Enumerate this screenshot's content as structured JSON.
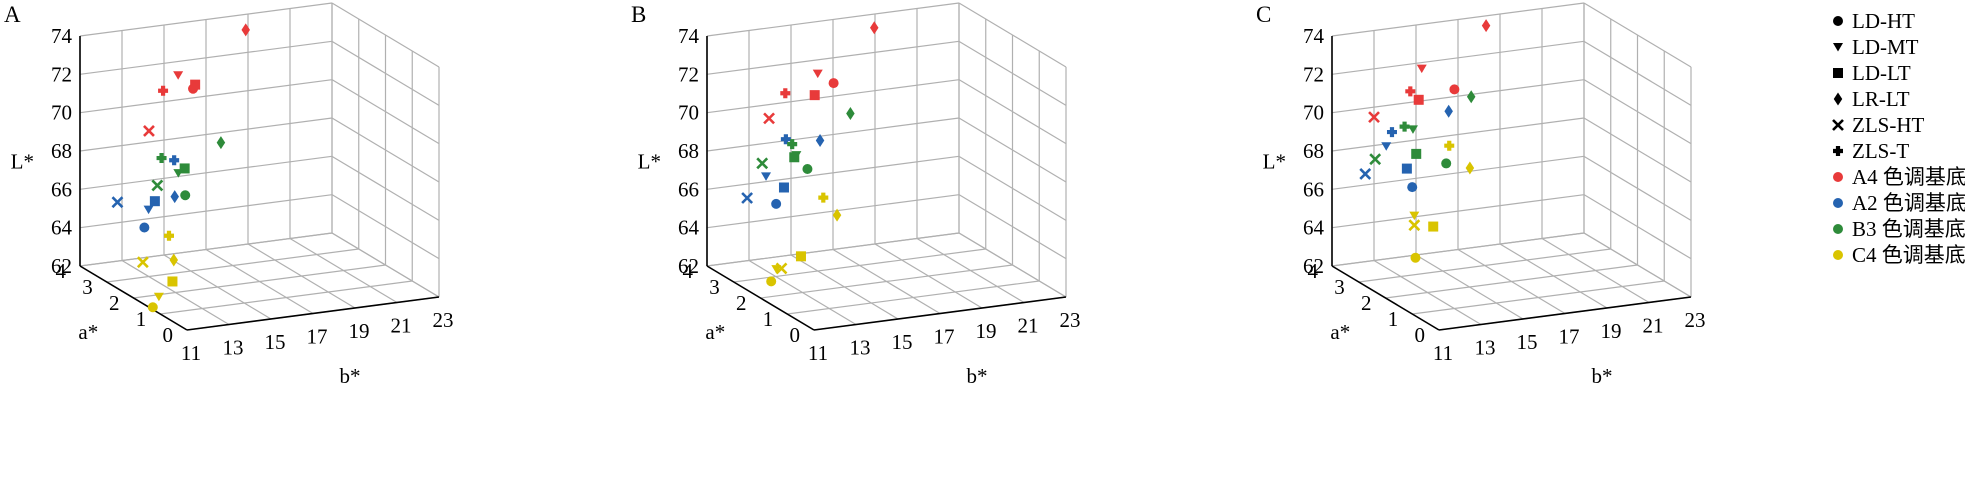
{
  "colors": {
    "A4": "#e83a3a",
    "A2": "#2563b0",
    "B3": "#2e8b3a",
    "C4": "#d9c400",
    "grid": "#b0b0b0",
    "axis": "#000000"
  },
  "legend": {
    "shape_entries": [
      {
        "label": "LD-HT",
        "marker": "circle"
      },
      {
        "label": "LD-MT",
        "marker": "triangle-down"
      },
      {
        "label": "LD-LT",
        "marker": "square"
      },
      {
        "label": "LR-LT",
        "marker": "diamond"
      },
      {
        "label": "ZLS-HT",
        "marker": "x"
      },
      {
        "label": "ZLS-T",
        "marker": "plus"
      }
    ],
    "color_entries": [
      {
        "label": "A4 色调基底",
        "color": "A4"
      },
      {
        "label": "A2 色调基底",
        "color": "A2"
      },
      {
        "label": "B3 色调基底",
        "color": "B3"
      },
      {
        "label": "C4 色调基底",
        "color": "C4"
      }
    ]
  },
  "chart_data": [
    {
      "panel": "A",
      "type": "scatter3d",
      "zlabel": "L*",
      "xlabel": "b*",
      "ylabel": "a*",
      "zlim": [
        62,
        74
      ],
      "xlim": [
        11,
        23
      ],
      "ylim": [
        0,
        4
      ],
      "z_ticks": [
        "62",
        "64",
        "66",
        "68",
        "70",
        "72",
        "74"
      ],
      "x_ticks": [
        "11",
        "13",
        "15",
        "17",
        "19",
        "21",
        "23"
      ],
      "y_ticks": [
        "0",
        "1",
        "2",
        "3",
        "4"
      ],
      "grid": true,
      "points": [
        {
          "group": "A4",
          "marker": "circle",
          "b": 14.6,
          "a": 2.6,
          "L": 71.9
        },
        {
          "group": "A4",
          "marker": "triangle-down",
          "b": 14.4,
          "a": 3.0,
          "L": 72.3
        },
        {
          "group": "A4",
          "marker": "square",
          "b": 14.7,
          "a": 2.6,
          "L": 72.1
        },
        {
          "group": "A4",
          "marker": "diamond",
          "b": 18.0,
          "a": 3.3,
          "L": 73.9
        },
        {
          "group": "A4",
          "marker": "x",
          "b": 12.5,
          "a": 2.6,
          "L": 70.0
        },
        {
          "group": "A4",
          "marker": "plus",
          "b": 13.3,
          "a": 2.7,
          "L": 71.9
        },
        {
          "group": "A2",
          "marker": "circle",
          "b": 11.9,
          "a": 2.3,
          "L": 65.3
        },
        {
          "group": "A2",
          "marker": "triangle-down",
          "b": 12.1,
          "a": 2.3,
          "L": 66.2
        },
        {
          "group": "A2",
          "marker": "square",
          "b": 12.4,
          "a": 2.3,
          "L": 66.6
        },
        {
          "group": "A2",
          "marker": "diamond",
          "b": 13.6,
          "a": 2.5,
          "L": 66.5
        },
        {
          "group": "A2",
          "marker": "x",
          "b": 11.0,
          "a": 2.6,
          "L": 66.5
        },
        {
          "group": "A2",
          "marker": "plus",
          "b": 13.7,
          "a": 2.6,
          "L": 68.3
        },
        {
          "group": "B3",
          "marker": "circle",
          "b": 14.1,
          "a": 2.5,
          "L": 66.5
        },
        {
          "group": "B3",
          "marker": "triangle-down",
          "b": 13.9,
          "a": 2.6,
          "L": 67.6
        },
        {
          "group": "B3",
          "marker": "square",
          "b": 14.2,
          "a": 2.6,
          "L": 67.8
        },
        {
          "group": "B3",
          "marker": "diamond",
          "b": 15.8,
          "a": 2.5,
          "L": 69.0
        },
        {
          "group": "B3",
          "marker": "x",
          "b": 12.9,
          "a": 2.6,
          "L": 67.1
        },
        {
          "group": "B3",
          "marker": "plus",
          "b": 13.1,
          "a": 2.6,
          "L": 68.5
        },
        {
          "group": "C4",
          "marker": "circle",
          "b": 10.9,
          "a": 1.2,
          "L": 62.2
        },
        {
          "group": "C4",
          "marker": "triangle-down",
          "b": 11.7,
          "a": 1.6,
          "L": 62.3
        },
        {
          "group": "C4",
          "marker": "square",
          "b": 12.6,
          "a": 1.8,
          "L": 62.8
        },
        {
          "group": "C4",
          "marker": "diamond",
          "b": 13.3,
          "a": 2.3,
          "L": 63.4
        },
        {
          "group": "C4",
          "marker": "x",
          "b": 11.7,
          "a": 2.2,
          "L": 63.6
        },
        {
          "group": "C4",
          "marker": "plus",
          "b": 13.2,
          "a": 2.4,
          "L": 64.6
        }
      ]
    },
    {
      "panel": "B",
      "type": "scatter3d",
      "zlabel": "L*",
      "xlabel": "b*",
      "ylabel": "a*",
      "zlim": [
        62,
        74
      ],
      "xlim": [
        11,
        23
      ],
      "ylim": [
        0,
        4
      ],
      "z_ticks": [
        "62",
        "64",
        "66",
        "68",
        "70",
        "72",
        "74"
      ],
      "x_ticks": [
        "11",
        "13",
        "15",
        "17",
        "19",
        "21",
        "23"
      ],
      "y_ticks": [
        "0",
        "1",
        "2",
        "3",
        "4"
      ],
      "grid": true,
      "points": [
        {
          "group": "A4",
          "marker": "circle",
          "b": 15.5,
          "a": 2.8,
          "L": 71.9
        },
        {
          "group": "A4",
          "marker": "triangle-down",
          "b": 15.0,
          "a": 3.0,
          "L": 72.3
        },
        {
          "group": "A4",
          "marker": "square",
          "b": 14.6,
          "a": 2.8,
          "L": 71.4
        },
        {
          "group": "A4",
          "marker": "diamond",
          "b": 18.2,
          "a": 3.4,
          "L": 73.9
        },
        {
          "group": "A4",
          "marker": "x",
          "b": 12.3,
          "a": 2.7,
          "L": 70.6
        },
        {
          "group": "A4",
          "marker": "plus",
          "b": 13.2,
          "a": 2.8,
          "L": 71.7
        },
        {
          "group": "A2",
          "marker": "circle",
          "b": 12.0,
          "a": 2.2,
          "L": 66.6
        },
        {
          "group": "A2",
          "marker": "triangle-down",
          "b": 11.9,
          "a": 2.5,
          "L": 67.8
        },
        {
          "group": "A2",
          "marker": "square",
          "b": 12.5,
          "a": 2.3,
          "L": 67.3
        },
        {
          "group": "A2",
          "marker": "diamond",
          "b": 14.6,
          "a": 2.6,
          "L": 69.2
        },
        {
          "group": "A2",
          "marker": "x",
          "b": 11.0,
          "a": 2.5,
          "L": 66.8
        },
        {
          "group": "A2",
          "marker": "plus",
          "b": 13.1,
          "a": 2.7,
          "L": 69.4
        },
        {
          "group": "B3",
          "marker": "circle",
          "b": 14.0,
          "a": 2.6,
          "L": 67.8
        },
        {
          "group": "B3",
          "marker": "triangle-down",
          "b": 13.6,
          "a": 2.7,
          "L": 68.5
        },
        {
          "group": "B3",
          "marker": "square",
          "b": 13.5,
          "a": 2.7,
          "L": 68.4
        },
        {
          "group": "B3",
          "marker": "diamond",
          "b": 16.3,
          "a": 2.8,
          "L": 70.2
        },
        {
          "group": "B3",
          "marker": "x",
          "b": 12.1,
          "a": 2.8,
          "L": 68.2
        },
        {
          "group": "B3",
          "marker": "plus",
          "b": 13.4,
          "a": 2.7,
          "L": 69.1
        },
        {
          "group": "C4",
          "marker": "circle",
          "b": 11.0,
          "a": 1.6,
          "L": 63.2
        },
        {
          "group": "C4",
          "marker": "triangle-down",
          "b": 11.5,
          "a": 1.8,
          "L": 63.6
        },
        {
          "group": "C4",
          "marker": "square",
          "b": 12.8,
          "a": 1.9,
          "L": 64.0
        },
        {
          "group": "C4",
          "marker": "diamond",
          "b": 14.9,
          "a": 2.2,
          "L": 65.6
        },
        {
          "group": "C4",
          "marker": "x",
          "b": 12.0,
          "a": 2.0,
          "L": 63.4
        },
        {
          "group": "C4",
          "marker": "plus",
          "b": 14.5,
          "a": 2.4,
          "L": 66.4
        }
      ]
    },
    {
      "panel": "C",
      "type": "scatter3d",
      "zlabel": "L*",
      "xlabel": "b*",
      "ylabel": "a*",
      "zlim": [
        62,
        74
      ],
      "xlim": [
        11,
        23
      ],
      "ylim": [
        0,
        4
      ],
      "z_ticks": [
        "62",
        "64",
        "66",
        "68",
        "70",
        "72",
        "74"
      ],
      "x_ticks": [
        "11",
        "13",
        "15",
        "17",
        "19",
        "21",
        "23"
      ],
      "y_ticks": [
        "0",
        "1",
        "2",
        "3",
        "4"
      ],
      "grid": true,
      "points": [
        {
          "group": "A4",
          "marker": "circle",
          "b": 15.3,
          "a": 2.8,
          "L": 71.6
        },
        {
          "group": "A4",
          "marker": "triangle-down",
          "b": 14.0,
          "a": 3.0,
          "L": 72.7
        },
        {
          "group": "A4",
          "marker": "square",
          "b": 13.6,
          "a": 2.8,
          "L": 71.3
        },
        {
          "group": "A4",
          "marker": "diamond",
          "b": 17.7,
          "a": 3.5,
          "L": 74.0
        },
        {
          "group": "A4",
          "marker": "x",
          "b": 11.6,
          "a": 2.9,
          "L": 70.6
        },
        {
          "group": "A4",
          "marker": "plus",
          "b": 13.2,
          "a": 2.8,
          "L": 71.8
        },
        {
          "group": "A2",
          "marker": "circle",
          "b": 12.4,
          "a": 2.1,
          "L": 67.5
        },
        {
          "group": "A2",
          "marker": "triangle-down",
          "b": 11.8,
          "a": 2.6,
          "L": 69.3
        },
        {
          "group": "A2",
          "marker": "square",
          "b": 12.4,
          "a": 2.3,
          "L": 68.3
        },
        {
          "group": "A2",
          "marker": "diamond",
          "b": 14.9,
          "a": 2.7,
          "L": 70.6
        },
        {
          "group": "A2",
          "marker": "x",
          "b": 10.8,
          "a": 2.6,
          "L": 68.0
        },
        {
          "group": "A2",
          "marker": "plus",
          "b": 12.2,
          "a": 2.7,
          "L": 69.9
        },
        {
          "group": "B3",
          "marker": "circle",
          "b": 14.4,
          "a": 2.4,
          "L": 68.2
        },
        {
          "group": "B3",
          "marker": "triangle-down",
          "b": 13.2,
          "a": 2.7,
          "L": 69.9
        },
        {
          "group": "B3",
          "marker": "square",
          "b": 13.1,
          "a": 2.5,
          "L": 68.8
        },
        {
          "group": "B3",
          "marker": "diamond",
          "b": 16.1,
          "a": 2.8,
          "L": 71.1
        },
        {
          "group": "B3",
          "marker": "x",
          "b": 11.4,
          "a": 2.7,
          "L": 68.6
        },
        {
          "group": "B3",
          "marker": "plus",
          "b": 12.8,
          "a": 2.7,
          "L": 70.1
        },
        {
          "group": "C4",
          "marker": "circle",
          "b": 12.3,
          "a": 1.9,
          "L": 64.0
        },
        {
          "group": "C4",
          "marker": "triangle-down",
          "b": 12.5,
          "a": 2.1,
          "L": 66.0
        },
        {
          "group": "C4",
          "marker": "square",
          "b": 13.4,
          "a": 2.1,
          "L": 65.3
        },
        {
          "group": "C4",
          "marker": "diamond",
          "b": 15.4,
          "a": 2.3,
          "L": 67.9
        },
        {
          "group": "C4",
          "marker": "x",
          "b": 12.5,
          "a": 2.1,
          "L": 65.5
        },
        {
          "group": "C4",
          "marker": "plus",
          "b": 14.8,
          "a": 2.6,
          "L": 68.9
        }
      ]
    }
  ]
}
